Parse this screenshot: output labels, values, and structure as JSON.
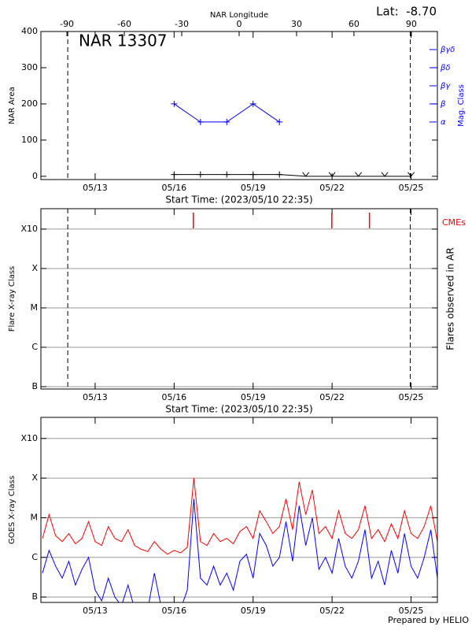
{
  "chart_data": [
    {
      "type": "line",
      "title": "NAR 13307",
      "annotation": "Lat:  -8.70",
      "x2_label": "NAR Longitude",
      "x2lim": [
        -103.6,
        103.6
      ],
      "x2ticks": [
        -90,
        -60,
        -30,
        0,
        30,
        60,
        90
      ],
      "xlim": [
        10.94,
        26.0
      ],
      "xticks": [
        {
          "value": 13,
          "label": "05/13"
        },
        {
          "value": 16,
          "label": "05/16"
        },
        {
          "value": 19,
          "label": "05/19"
        },
        {
          "value": 22,
          "label": "05/22"
        },
        {
          "value": 25,
          "label": "05/25"
        }
      ],
      "x_label": "Start Time: (2023/05/10 22:35)",
      "ylabel": "NAR Area",
      "ylim": [
        -9,
        400
      ],
      "yticks": [
        0,
        100,
        200,
        300,
        400
      ],
      "y2_label": "Mag. Class",
      "y2lim": [
        -9,
        400
      ],
      "y2ticks": [
        {
          "value": 150,
          "label": "α"
        },
        {
          "value": 200,
          "label": "β"
        },
        {
          "value": 250,
          "label": "βγ"
        },
        {
          "value": 300,
          "label": "βδ"
        },
        {
          "value": 350,
          "label": "βγδ"
        }
      ],
      "vlines": [
        11.96,
        24.97
      ],
      "series": [
        {
          "color": "#000000",
          "x": [
            16,
            17,
            18,
            19,
            20,
            21,
            22,
            23,
            24,
            25
          ],
          "values": [
            5,
            5,
            5,
            5,
            5,
            0,
            0,
            0,
            0,
            0
          ]
        },
        {
          "color": "#0000ff",
          "axis": "y2",
          "x": [
            16,
            17,
            18,
            19,
            20
          ],
          "values": [
            200,
            150,
            150,
            200,
            150
          ]
        }
      ]
    },
    {
      "type": "event",
      "xlim": [
        10.94,
        26.0
      ],
      "xticks": [
        {
          "value": 13,
          "label": "05/13"
        },
        {
          "value": 16,
          "label": "05/16"
        },
        {
          "value": 19,
          "label": "05/19"
        },
        {
          "value": 22,
          "label": "05/22"
        },
        {
          "value": 25,
          "label": "05/25"
        }
      ],
      "x_label": "Start Time: (2023/05/10 22:35)",
      "ylabel": "Flare X-ray Class",
      "y2_label": "Flares observed in AR",
      "yscale": "log",
      "ylim": [
        8.7e-08,
        0.0033
      ],
      "yticks": [
        {
          "value": 1e-07,
          "label": "B"
        },
        {
          "value": 1e-06,
          "label": "C"
        },
        {
          "value": 1e-05,
          "label": "M"
        },
        {
          "value": 0.0001,
          "label": "X"
        },
        {
          "value": 0.001,
          "label": "X10"
        }
      ],
      "grid": true,
      "vlines": [
        11.96,
        24.97
      ],
      "series": [
        {
          "name": "CMEs",
          "color": "#ff0000",
          "x": [
            16.73,
            21.99,
            23.42
          ]
        }
      ]
    },
    {
      "type": "line",
      "xlim": [
        10.94,
        26.0
      ],
      "xticks": [
        {
          "value": 13,
          "label": "05/13"
        },
        {
          "value": 16,
          "label": "05/16"
        },
        {
          "value": 19,
          "label": "05/19"
        },
        {
          "value": 22,
          "label": "05/22"
        },
        {
          "value": 25,
          "label": "05/25"
        }
      ],
      "ylabel": "GOES X-ray Class",
      "yscale": "log",
      "ylim": [
        7.3e-08,
        0.0034
      ],
      "yticks": [
        {
          "value": 1e-07,
          "label": "B"
        },
        {
          "value": 1e-06,
          "label": "C"
        },
        {
          "value": 1e-05,
          "label": "M"
        },
        {
          "value": 0.0001,
          "label": "X"
        },
        {
          "value": 0.001,
          "label": "X10"
        }
      ],
      "grid": true,
      "footnote": "Prepared by HELIO",
      "x": [
        11,
        11.25,
        11.5,
        11.75,
        12,
        12.25,
        12.5,
        12.75,
        13,
        13.25,
        13.5,
        13.75,
        14,
        14.25,
        14.5,
        14.75,
        15,
        15.25,
        15.5,
        15.75,
        16,
        16.25,
        16.5,
        16.75,
        17,
        17.25,
        17.5,
        17.75,
        18,
        18.25,
        18.5,
        18.75,
        19,
        19.25,
        19.5,
        19.75,
        20,
        20.25,
        20.5,
        20.75,
        21,
        21.25,
        21.5,
        21.75,
        22,
        22.25,
        22.5,
        22.75,
        23,
        23.25,
        23.5,
        23.75,
        24,
        24.25,
        24.5,
        24.75,
        25,
        25.25,
        25.5,
        25.75,
        26
      ],
      "series": [
        {
          "color": "#ff0000",
          "values": [
            3e-06,
            1.2e-05,
            3.5e-06,
            2.5e-06,
            4e-06,
            2.2e-06,
            3e-06,
            8e-06,
            2.5e-06,
            2e-06,
            6e-06,
            3e-06,
            2.5e-06,
            5e-06,
            2e-06,
            1.6e-06,
            1.4e-06,
            2.5e-06,
            1.6e-06,
            1.2e-06,
            1.5e-06,
            1.3e-06,
            1.8e-06,
            0.0001,
            2.5e-06,
            2e-06,
            4e-06,
            2.5e-06,
            3e-06,
            2.2e-06,
            4.5e-06,
            6e-06,
            3e-06,
            1.5e-05,
            8e-06,
            4e-06,
            6e-06,
            3e-05,
            5e-06,
            8e-05,
            1.2e-05,
            5e-05,
            4e-06,
            6e-06,
            3e-06,
            1.5e-05,
            4e-06,
            3e-06,
            5e-06,
            2e-05,
            3e-06,
            5e-06,
            2.5e-06,
            7e-06,
            3e-06,
            1.5e-05,
            4e-06,
            3e-06,
            6e-06,
            2e-05,
            2.5e-06
          ]
        },
        {
          "color": "#0000ff",
          "values": [
            4e-07,
            1.5e-06,
            6e-07,
            3e-07,
            8e-07,
            2e-07,
            5e-07,
            1e-06,
            1.5e-07,
            8e-08,
            3e-07,
            1e-07,
            6e-08,
            2e-07,
            5e-08,
            5e-08,
            5e-08,
            4e-07,
            6e-08,
            5e-08,
            5e-08,
            5e-08,
            1.5e-07,
            3e-05,
            3e-07,
            2e-07,
            6e-07,
            2e-07,
            4e-07,
            1.5e-07,
            8e-07,
            1.2e-06,
            3e-07,
            4e-06,
            2e-06,
            6e-07,
            1e-06,
            8e-06,
            8e-07,
            2e-05,
            2e-06,
            1e-05,
            5e-07,
            1e-06,
            4e-07,
            3e-06,
            6e-07,
            3e-07,
            8e-07,
            5e-06,
            3e-07,
            8e-07,
            2e-07,
            1.5e-06,
            4e-07,
            4e-06,
            6e-07,
            3e-07,
            1e-06,
            5e-06,
            3e-07
          ]
        }
      ]
    }
  ]
}
